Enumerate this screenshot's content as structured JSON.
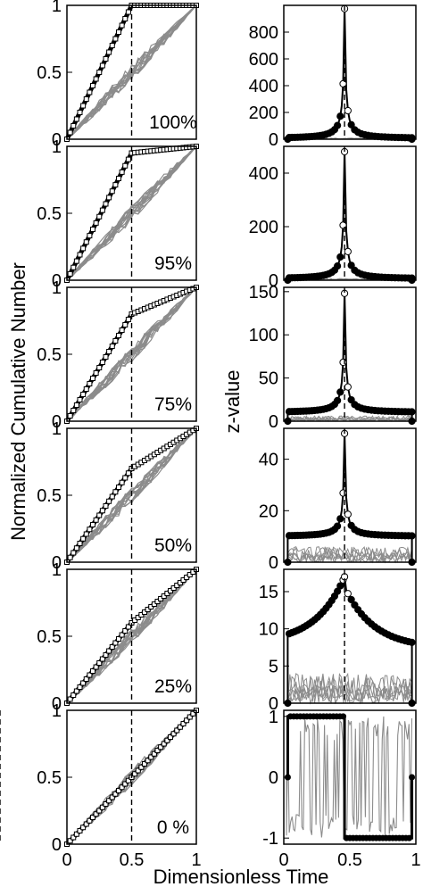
{
  "chart_data": {
    "type": "line",
    "xlabel": "Dimensionless Time",
    "left_ylabel": "Normalized Cumulative Number",
    "right_ylabel": "z-value",
    "colors": {
      "observed": "#000000",
      "simulated": "#8c8c8c",
      "marker_fill": "#ffffff"
    },
    "rows": [
      {
        "label": "100%",
        "cumulative": {
          "xlim": [
            0,
            1
          ],
          "ylim": [
            0,
            1
          ],
          "xticks": [
            "0",
            "0.5",
            "1"
          ],
          "yticks": [
            "0",
            "0.5",
            "1"
          ],
          "kink_x": 0.5,
          "kink_y": 1.0,
          "vline_x": 0.5
        },
        "zvalue": {
          "xlim": [
            0,
            1
          ],
          "ylim": [
            0,
            1000
          ],
          "yticks": [
            "0",
            "200",
            "400",
            "600",
            "800"
          ],
          "peak": 975,
          "base": 5,
          "vline_x": 0.46,
          "noise_amp": 8,
          "shape": "spike"
        }
      },
      {
        "label": "95%",
        "cumulative": {
          "xlim": [
            0,
            1
          ],
          "ylim": [
            0,
            1
          ],
          "xticks": [
            "0",
            "0.5",
            "1"
          ],
          "yticks": [
            "0",
            "0.5",
            "1"
          ],
          "kink_x": 0.5,
          "kink_y": 0.95,
          "vline_x": 0.5
        },
        "zvalue": {
          "xlim": [
            0,
            1
          ],
          "ylim": [
            0,
            500
          ],
          "yticks": [
            "0",
            "200",
            "400"
          ],
          "peak": 480,
          "base": 5,
          "vline_x": 0.46,
          "noise_amp": 6,
          "shape": "spike"
        }
      },
      {
        "label": "75%",
        "cumulative": {
          "xlim": [
            0,
            1
          ],
          "ylim": [
            0,
            1
          ],
          "xticks": [
            "0",
            "0.5",
            "1"
          ],
          "yticks": [
            "0",
            "0.5",
            "1"
          ],
          "kink_x": 0.5,
          "kink_y": 0.8,
          "vline_x": 0.5
        },
        "zvalue": {
          "xlim": [
            0,
            1
          ],
          "ylim": [
            0,
            155
          ],
          "yticks": [
            "0",
            "50",
            "100",
            "150"
          ],
          "peak": 148,
          "base": 10,
          "vline_x": 0.46,
          "noise_amp": 6,
          "shape": "spike"
        }
      },
      {
        "label": "50%",
        "cumulative": {
          "xlim": [
            0,
            1
          ],
          "ylim": [
            0,
            1
          ],
          "xticks": [
            "0",
            "0.5",
            "1"
          ],
          "yticks": [
            "0",
            "0.5",
            "1"
          ],
          "kink_x": 0.5,
          "kink_y": 0.7,
          "vline_x": 0.5
        },
        "zvalue": {
          "xlim": [
            0,
            1
          ],
          "ylim": [
            0,
            52
          ],
          "yticks": [
            "0",
            "20",
            "40"
          ],
          "peak": 50,
          "base": 10,
          "vline_x": 0.46,
          "noise_amp": 6,
          "shape": "spike"
        }
      },
      {
        "label": "25%",
        "cumulative": {
          "xlim": [
            0,
            1
          ],
          "ylim": [
            0,
            1
          ],
          "xticks": [
            "0",
            "0.5",
            "1"
          ],
          "yticks": [
            "0",
            "0.5",
            "1"
          ],
          "kink_x": 0.5,
          "kink_y": 0.6,
          "vline_x": 0.5
        },
        "zvalue": {
          "xlim": [
            0,
            1
          ],
          "ylim": [
            0,
            18
          ],
          "yticks": [
            "0",
            "5",
            "10",
            "15"
          ],
          "peak": 17,
          "base": 8,
          "vline_x": 0.46,
          "noise_amp": 4,
          "shape": "cusp"
        }
      },
      {
        "label": "0 %",
        "cumulative": {
          "xlim": [
            0,
            1
          ],
          "ylim": [
            0,
            1
          ],
          "xticks": [
            "0",
            "0.5",
            "1"
          ],
          "yticks": [
            "0",
            "0.5",
            "1"
          ],
          "kink_x": 0.5,
          "kink_y": 0.5,
          "vline_x": 0.5
        },
        "zvalue": {
          "xlim": [
            0,
            1
          ],
          "ylim": [
            -1.1,
            1.1
          ],
          "yticks": [
            "-1",
            "0",
            "1"
          ],
          "xticks": [
            "0",
            "0.5",
            "1"
          ],
          "step_x": 0.46,
          "shape": "step"
        }
      }
    ]
  }
}
